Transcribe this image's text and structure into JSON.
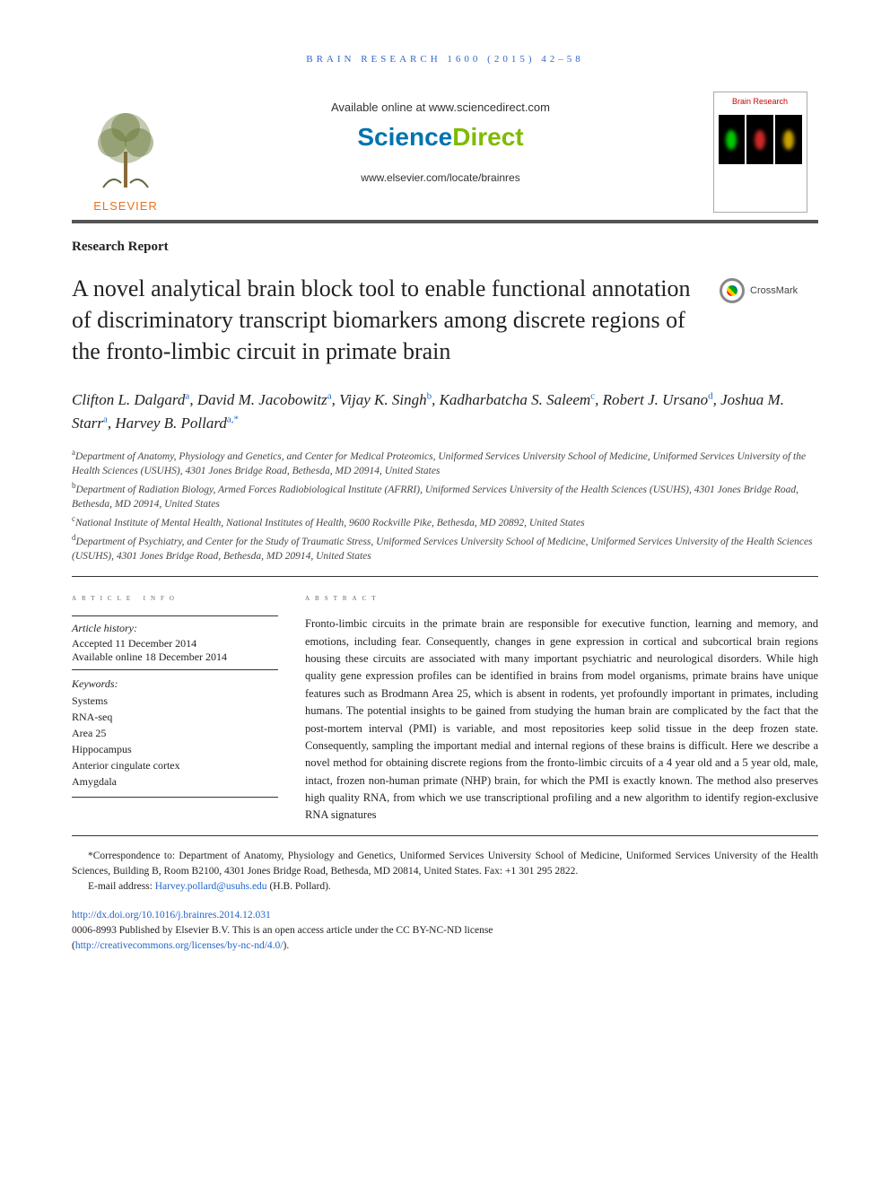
{
  "running_head": "BRAIN RESEARCH 1600 (2015) 42–58",
  "masthead": {
    "elsevier": "ELSEVIER",
    "available_online": "Available online at www.sciencedirect.com",
    "sciencedirect_a": "Science",
    "sciencedirect_b": "Direct",
    "journal_url": "www.elsevier.com/locate/brainres",
    "cover_title": "Brain Research"
  },
  "article_type": "Research Report",
  "title": "A novel analytical brain block tool to enable functional annotation of discriminatory transcript biomarkers among discrete regions of the fronto-limbic circuit in primate brain",
  "crossmark_label": "CrossMark",
  "authors": [
    {
      "name": "Clifton L. Dalgard",
      "aff": "a"
    },
    {
      "name": "David M. Jacobowitz",
      "aff": "a"
    },
    {
      "name": "Vijay K. Singh",
      "aff": "b"
    },
    {
      "name": "Kadharbatcha S. Saleem",
      "aff": "c"
    },
    {
      "name": "Robert J. Ursano",
      "aff": "d"
    },
    {
      "name": "Joshua M. Starr",
      "aff": "a"
    },
    {
      "name": "Harvey B. Pollard",
      "aff": "a,*"
    }
  ],
  "affiliations": [
    {
      "mark": "a",
      "text": "Department of Anatomy, Physiology and Genetics, and Center for Medical Proteomics, Uniformed Services University School of Medicine, Uniformed Services University of the Health Sciences (USUHS), 4301 Jones Bridge Road, Bethesda, MD 20914, United States"
    },
    {
      "mark": "b",
      "text": "Department of Radiation Biology, Armed Forces Radiobiological Institute (AFRRI), Uniformed Services University of the Health Sciences (USUHS), 4301 Jones Bridge Road, Bethesda, MD 20914, United States"
    },
    {
      "mark": "c",
      "text": "National Institute of Mental Health, National Institutes of Health, 9600 Rockville Pike, Bethesda, MD 20892, United States"
    },
    {
      "mark": "d",
      "text": "Department of Psychiatry, and Center for the Study of Traumatic Stress, Uniformed Services University School of Medicine, Uniformed Services University of the Health Sciences (USUHS), 4301 Jones Bridge Road, Bethesda, MD 20914, United States"
    }
  ],
  "article_info": {
    "heading": "article info",
    "history_label": "Article history:",
    "accepted": "Accepted 11 December 2014",
    "online": "Available online 18 December 2014",
    "keywords_label": "Keywords:",
    "keywords": [
      "Systems",
      "RNA-seq",
      "Area 25",
      "Hippocampus",
      "Anterior cingulate cortex",
      "Amygdala"
    ]
  },
  "abstract": {
    "heading": "abstract",
    "text": "Fronto-limbic circuits in the primate brain are responsible for executive function, learning and memory, and emotions, including fear. Consequently, changes in gene expression in cortical and subcortical brain regions housing these circuits are associated with many important psychiatric and neurological disorders. While high quality gene expression profiles can be identified in brains from model organisms, primate brains have unique features such as Brodmann Area 25, which is absent in rodents, yet profoundly important in primates, including humans. The potential insights to be gained from studying the human brain are complicated by the fact that the post-mortem interval (PMI) is variable, and most repositories keep solid tissue in the deep frozen state. Consequently, sampling the important medial and internal regions of these brains is difficult. Here we describe a novel method for obtaining discrete regions from the fronto-limbic circuits of a 4 year old and a 5 year old, male, intact, frozen non-human primate (NHP) brain, for which the PMI is exactly known. The method also preserves high quality RNA, from which we use transcriptional profiling and a new algorithm to identify region-exclusive RNA signatures"
  },
  "footnotes": {
    "correspondence": "*Correspondence to: Department of Anatomy, Physiology and Genetics, Uniformed Services University School of Medicine, Uniformed Services University of the Health Sciences, Building B, Room B2100, 4301 Jones Bridge Road, Bethesda, MD 20814, United States. Fax: +1 301 295 2822.",
    "email_label": "E-mail address: ",
    "email": "Harvey.pollard@usuhs.edu",
    "email_person": " (H.B. Pollard)."
  },
  "doi": {
    "url": "http://dx.doi.org/10.1016/j.brainres.2014.12.031",
    "issn_line": "0006-8993 Published by Elsevier B.V. This is an open access article under the CC BY-NC-ND license",
    "license_url": "http://creativecommons.org/licenses/by-nc-nd/4.0/"
  },
  "colors": {
    "link": "#2266cc",
    "elsevier_orange": "#e9711c",
    "rule": "#555555"
  }
}
